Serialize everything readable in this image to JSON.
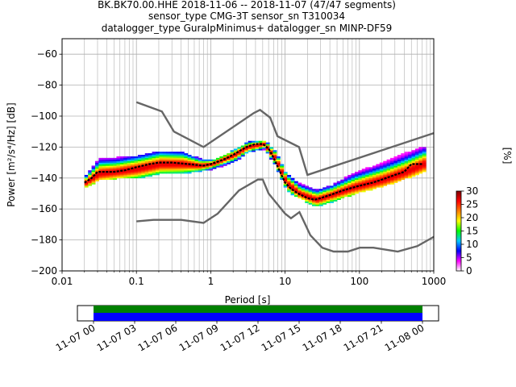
{
  "title_lines": [
    "BK.BK70.00.HHE   2018-11-06 -- 2018-11-07  (47/47 segments)",
    "sensor_type CMG-3T sensor_sn T310034",
    "datalogger_type GuralpMinimus+ datalogger_sn MINP-DF59"
  ],
  "colorbar": {
    "label": "[%]",
    "ticks": [
      0,
      5,
      10,
      15,
      20,
      25,
      30
    ],
    "min": 0,
    "max": 30,
    "colors": [
      "#ffffff",
      "#ff00ff",
      "#0000ff",
      "#00c8ff",
      "#00ff00",
      "#ffff00",
      "#ff8000",
      "#ff0000",
      "#800000"
    ]
  },
  "chart_data": [
    {
      "type": "heatmap",
      "subtype": "ppsd",
      "xlabel": "Period [s]",
      "ylabel": "Power [m²/s⁴/Hz] [dB]",
      "xscale": "log",
      "xlim": [
        0.01,
        1000
      ],
      "ylim": [
        -200,
        -50
      ],
      "xticks": [
        0.01,
        0.1,
        1,
        10,
        100,
        1000
      ],
      "xtick_labels": [
        "0.01",
        "0.1",
        "1",
        "10",
        "100",
        "1000"
      ],
      "yticks": [
        -200,
        -180,
        -160,
        -140,
        -120,
        -100,
        -80,
        -60
      ],
      "grid": true,
      "median_curve": [
        [
          0.02,
          -143
        ],
        [
          0.025,
          -140
        ],
        [
          0.03,
          -136
        ],
        [
          0.04,
          -136
        ],
        [
          0.05,
          -136
        ],
        [
          0.07,
          -135
        ],
        [
          0.1,
          -133
        ],
        [
          0.15,
          -131
        ],
        [
          0.2,
          -130
        ],
        [
          0.3,
          -130
        ],
        [
          0.5,
          -131
        ],
        [
          0.8,
          -132
        ],
        [
          1,
          -131
        ],
        [
          1.5,
          -128
        ],
        [
          2,
          -125
        ],
        [
          3,
          -120
        ],
        [
          4,
          -118
        ],
        [
          5,
          -118
        ],
        [
          6,
          -121
        ],
        [
          7,
          -127
        ],
        [
          8,
          -133
        ],
        [
          10,
          -143
        ],
        [
          12,
          -147
        ],
        [
          15,
          -150
        ],
        [
          20,
          -153
        ],
        [
          25,
          -154
        ],
        [
          30,
          -153
        ],
        [
          40,
          -151
        ],
        [
          60,
          -148
        ],
        [
          100,
          -145
        ],
        [
          150,
          -143
        ],
        [
          200,
          -141
        ],
        [
          300,
          -138
        ],
        [
          400,
          -136
        ],
        [
          500,
          -131
        ],
        [
          700,
          -131
        ]
      ],
      "density": [
        {
          "period": 0.02,
          "lo": -146,
          "hi": -138,
          "peak": -143
        },
        {
          "period": 0.03,
          "lo": -141,
          "hi": -127,
          "peak": -137
        },
        {
          "period": 0.05,
          "lo": -140,
          "hi": -127,
          "peak": -136
        },
        {
          "period": 0.1,
          "lo": -140,
          "hi": -126,
          "peak": -134
        },
        {
          "period": 0.2,
          "lo": -137,
          "hi": -123,
          "peak": -131
        },
        {
          "period": 0.4,
          "lo": -137,
          "hi": -124,
          "peak": -131
        },
        {
          "period": 0.7,
          "lo": -135,
          "hi": -128,
          "peak": -132
        },
        {
          "period": 1,
          "lo": -134,
          "hi": -129,
          "peak": -131
        },
        {
          "period": 2,
          "lo": -129,
          "hi": -122,
          "peak": -125
        },
        {
          "period": 3,
          "lo": -123,
          "hi": -117,
          "peak": -120
        },
        {
          "period": 5,
          "lo": -121,
          "hi": -116,
          "peak": -118
        },
        {
          "period": 7,
          "lo": -131,
          "hi": -123,
          "peak": -127
        },
        {
          "period": 10,
          "lo": -148,
          "hi": -138,
          "peak": -143
        },
        {
          "period": 15,
          "lo": -153,
          "hi": -144,
          "peak": -150
        },
        {
          "period": 25,
          "lo": -158,
          "hi": -148,
          "peak": -154
        },
        {
          "period": 40,
          "lo": -155,
          "hi": -145,
          "peak": -151
        },
        {
          "period": 80,
          "lo": -150,
          "hi": -137,
          "peak": -146
        },
        {
          "period": 200,
          "lo": -145,
          "hi": -130,
          "peak": -141
        },
        {
          "period": 400,
          "lo": -140,
          "hi": -124,
          "peak": -136
        },
        {
          "period": 700,
          "lo": -136,
          "hi": -120,
          "peak": -131
        }
      ],
      "noise_model_high": [
        [
          0.1,
          -91
        ],
        [
          0.22,
          -97
        ],
        [
          0.32,
          -110
        ],
        [
          0.8,
          -120
        ],
        [
          3.8,
          -98
        ],
        [
          4.6,
          -96
        ],
        [
          6.3,
          -101
        ],
        [
          7.9,
          -113
        ],
        [
          15.4,
          -120
        ],
        [
          20,
          -138
        ],
        [
          1000,
          -111
        ]
      ],
      "noise_model_low": [
        [
          0.1,
          -168
        ],
        [
          0.17,
          -167
        ],
        [
          0.4,
          -167
        ],
        [
          0.8,
          -169
        ],
        [
          1.24,
          -163
        ],
        [
          2.4,
          -148
        ],
        [
          4.3,
          -141
        ],
        [
          5,
          -141
        ],
        [
          6,
          -150
        ],
        [
          10,
          -163
        ],
        [
          12,
          -166
        ],
        [
          15.6,
          -162
        ],
        [
          21.9,
          -177
        ],
        [
          31.6,
          -185
        ],
        [
          45,
          -187.5
        ],
        [
          70,
          -187.5
        ],
        [
          101,
          -185
        ],
        [
          154,
          -185
        ],
        [
          328,
          -187.5
        ],
        [
          600,
          -184
        ],
        [
          1000,
          -178
        ]
      ]
    },
    {
      "type": "bar",
      "subtype": "data-coverage",
      "xtick_labels": [
        "11-07 00",
        "11-07 03",
        "11-07 06",
        "11-07 09",
        "11-07 12",
        "11-07 15",
        "11-07 18",
        "11-07 21",
        "11-08 00"
      ],
      "xlim": [
        "2018-11-06 21:00",
        "2018-11-08 01:00"
      ],
      "coverage_segments": [
        [
          "2018-11-07 00:00",
          "2018-11-08 00:00"
        ]
      ],
      "colors": {
        "used_data": "#008000",
        "available_data": "#0000ff"
      }
    }
  ]
}
